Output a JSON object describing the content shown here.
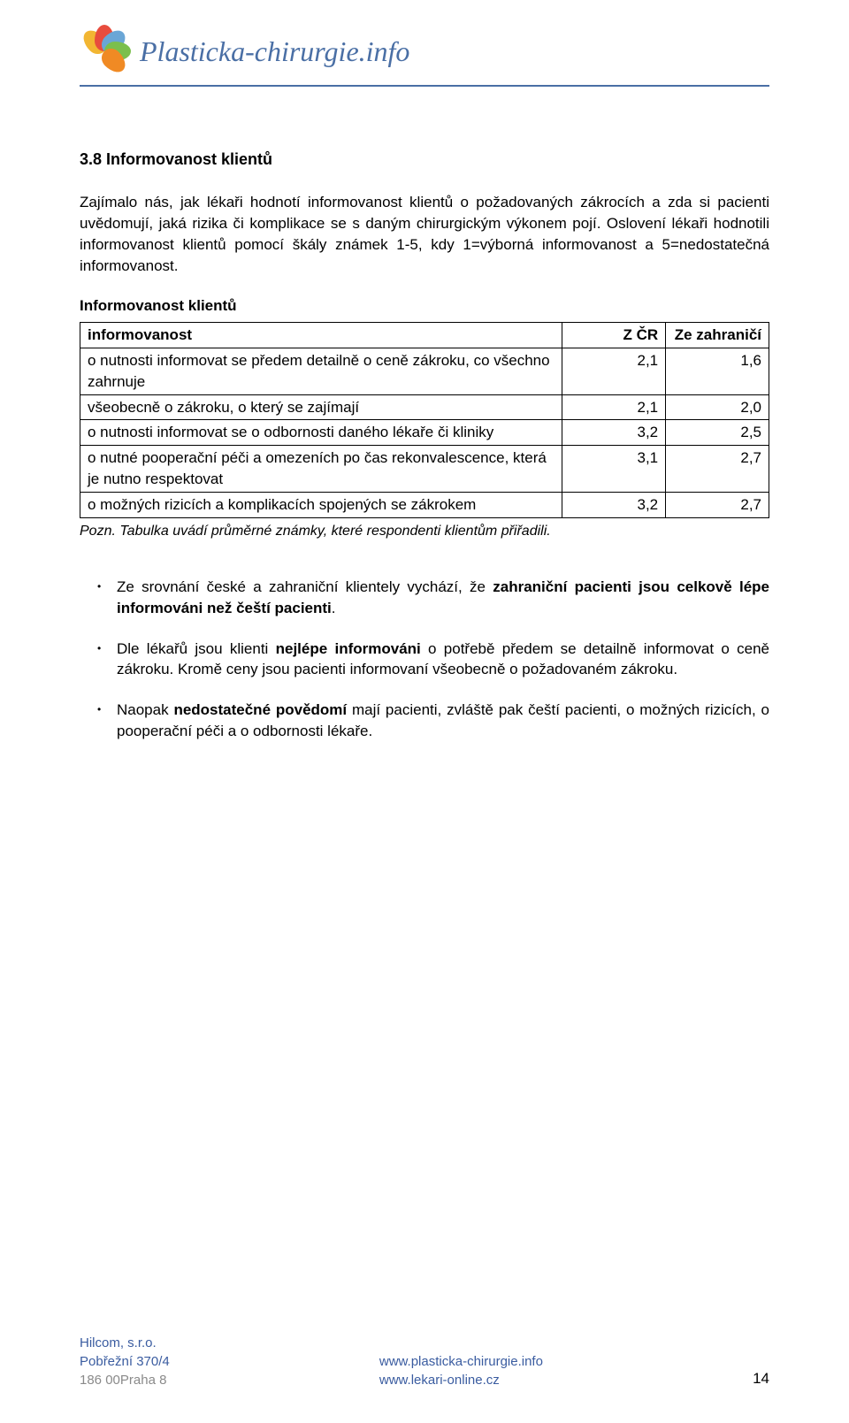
{
  "header": {
    "site_title": "Plasticka-chirurgie.info",
    "logo_petals": [
      {
        "color": "#f2b632",
        "rotate": -45
      },
      {
        "color": "#e84c3d",
        "rotate": 0
      },
      {
        "color": "#6aa6d6",
        "rotate": 45
      },
      {
        "color": "#7bbf4d",
        "rotate": 90
      },
      {
        "color": "#f08a24",
        "rotate": 135
      }
    ],
    "rule_color": "#4a6fa5"
  },
  "section": {
    "heading": "3.8 Informovanost klientů",
    "intro": "Zajímalo nás, jak lékaři hodnotí informovanost klientů o požadovaných zákrocích a zda si pacienti uvědomují, jaká rizika či komplikace se s daným chirurgickým výkonem pojí. Oslovení lékaři hodnotili informovanost klientů pomocí škály známek 1-5, kdy 1=výborná informovanost a 5=nedostatečná informovanost."
  },
  "table": {
    "caption": "Informovanost klientů",
    "columns": [
      "informovanost",
      "Z ČR",
      "Ze zahraničí"
    ],
    "rows": [
      [
        "o nutnosti informovat se předem detailně o ceně zákroku, co všechno zahrnuje",
        "2,1",
        "1,6"
      ],
      [
        "všeobecně o zákroku, o který se zajímají",
        "2,1",
        "2,0"
      ],
      [
        "o nutnosti informovat se o odbornosti daného lékaře či kliniky",
        "3,2",
        "2,5"
      ],
      [
        "o nutné pooperační péči a omezeních po čas rekonvalescence, která je nutno respektovat",
        "3,1",
        "2,7"
      ],
      [
        "o možných rizicích a komplikacích spojených se zákrokem",
        "3,2",
        "2,7"
      ]
    ],
    "note": "Pozn. Tabulka uvádí průměrné známky, které respondenti klientům přiřadili."
  },
  "bullets": [
    {
      "pre": "Ze srovnání české a zahraniční klientely vychází, že ",
      "bold": "zahraniční pacienti jsou celkově lépe informováni než čeští pacienti",
      "post": "."
    },
    {
      "pre": "Dle lékařů jsou klienti ",
      "bold": "nejlépe informováni",
      "post": " o potřebě předem se detailně informovat o ceně zákroku. Kromě ceny jsou pacienti informovaní všeobecně o požadovaném zákroku."
    },
    {
      "pre": "Naopak ",
      "bold": "nedostatečné povědomí",
      "post": " mají pacienti, zvláště pak čeští pacienti, o možných rizicích, o pooperační péči a o odbornosti lékaře."
    }
  ],
  "footer": {
    "company": "Hilcom, s.r.o.",
    "addr1": "Pobřežní 370/4",
    "addr2": "186 00Praha 8",
    "url1": "www.plasticka-chirurgie.info",
    "url2": "www.lekari-online.cz",
    "page": "14"
  }
}
